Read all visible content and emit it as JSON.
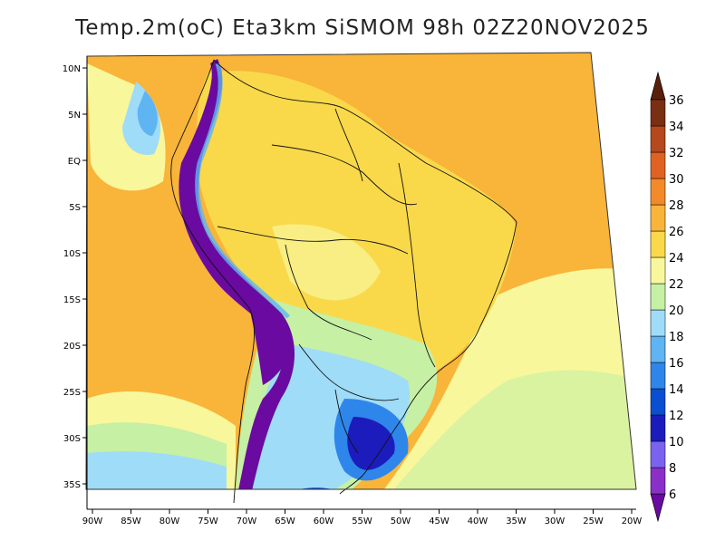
{
  "title": "Temp.2m(oC) Eta3km SiSMOM 98h 02Z20NOV2025",
  "lat_labels": [
    "10N",
    "5N",
    "EQ",
    "5S",
    "10S",
    "15S",
    "20S",
    "25S",
    "30S",
    "35S"
  ],
  "lon_labels": [
    "90W",
    "85W",
    "80W",
    "75W",
    "70W",
    "65W",
    "60W",
    "55W",
    "50W",
    "45W",
    "40W",
    "35W",
    "30W",
    "25W",
    "20W"
  ],
  "colorbar": {
    "levels": [
      "6",
      "8",
      "10",
      "12",
      "14",
      "16",
      "18",
      "20",
      "22",
      "24",
      "26",
      "28",
      "30",
      "32",
      "34",
      "36"
    ],
    "colors": [
      "#6a0aa0",
      "#8a2fc8",
      "#7b63ef",
      "#1c1cbd",
      "#0a4fd1",
      "#2f86ea",
      "#5fb4f2",
      "#9fdcf7",
      "#c6f0a4",
      "#f8f79c",
      "#f9d94a",
      "#f9b43a",
      "#f28a2a",
      "#e06222",
      "#b5481c",
      "#7a2e12",
      "#5a1f0c"
    ]
  },
  "field_colors": {
    "warm_ocean": "#f9b43a",
    "tropical": "#f9d94a",
    "cool_ocean": "#f8f79c",
    "light_green": "#c6f0a4",
    "cyan": "#9fdcf7",
    "blue": "#5fb4f2",
    "deep_blue": "#1c1cbd",
    "andes": "#6a0aa0"
  }
}
